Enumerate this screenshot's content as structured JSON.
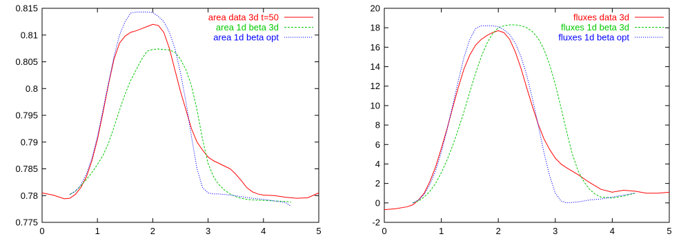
{
  "chart_data": [
    {
      "type": "line",
      "title": "",
      "xlabel": "",
      "ylabel": "",
      "xlim": [
        0,
        5
      ],
      "ylim": [
        0.775,
        0.815
      ],
      "xticks": [
        "0",
        "1",
        "2",
        "3",
        "4",
        "5"
      ],
      "yticks": [
        "0.775",
        "0.78",
        "0.785",
        "0.79",
        "0.795",
        "0.8",
        "0.805",
        "0.81",
        "0.815"
      ],
      "grid": false,
      "legend": "top-right",
      "series": [
        {
          "name": "area data 3d t=50",
          "color": "#ff0000",
          "style": "solid",
          "x": [
            0,
            0.2,
            0.4,
            0.5,
            0.6,
            0.7,
            0.8,
            0.9,
            1.0,
            1.1,
            1.2,
            1.3,
            1.4,
            1.5,
            1.6,
            1.7,
            1.8,
            1.9,
            2.0,
            2.1,
            2.2,
            2.3,
            2.4,
            2.5,
            2.6,
            2.7,
            2.8,
            2.9,
            3.0,
            3.1,
            3.2,
            3.3,
            3.4,
            3.5,
            3.6,
            3.7,
            3.8,
            3.9,
            4.0,
            4.2,
            4.4,
            4.6,
            4.8,
            5.0
          ],
          "y": [
            0.7805,
            0.7801,
            0.7794,
            0.7795,
            0.7802,
            0.7815,
            0.7835,
            0.7865,
            0.7905,
            0.7955,
            0.8008,
            0.8055,
            0.8085,
            0.8098,
            0.8105,
            0.8108,
            0.8112,
            0.8116,
            0.812,
            0.8118,
            0.8105,
            0.8075,
            0.8035,
            0.7995,
            0.796,
            0.7925,
            0.79,
            0.7885,
            0.7872,
            0.7865,
            0.786,
            0.7855,
            0.785,
            0.784,
            0.7828,
            0.7815,
            0.7807,
            0.7803,
            0.7801,
            0.78,
            0.7797,
            0.7795,
            0.7796,
            0.7805
          ]
        },
        {
          "name": "area 1d beta 3d",
          "color": "#00c800",
          "style": "dashed",
          "x": [
            0.5,
            0.6,
            0.7,
            0.8,
            0.9,
            1.0,
            1.1,
            1.2,
            1.3,
            1.4,
            1.5,
            1.6,
            1.7,
            1.8,
            1.9,
            2.0,
            2.1,
            2.2,
            2.3,
            2.4,
            2.5,
            2.6,
            2.7,
            2.8,
            2.9,
            3.0,
            3.1,
            3.2,
            3.3,
            3.4,
            3.5,
            3.6,
            3.7,
            3.8,
            4.0,
            4.2,
            4.4,
            4.5
          ],
          "y": [
            0.7802,
            0.7808,
            0.7818,
            0.783,
            0.7843,
            0.7858,
            0.7875,
            0.7898,
            0.7928,
            0.796,
            0.799,
            0.8015,
            0.8035,
            0.8055,
            0.807,
            0.8073,
            0.8074,
            0.8073,
            0.8072,
            0.8068,
            0.8055,
            0.8035,
            0.8005,
            0.796,
            0.7905,
            0.786,
            0.7835,
            0.782,
            0.781,
            0.7803,
            0.7798,
            0.7795,
            0.7793,
            0.7792,
            0.7791,
            0.779,
            0.7789,
            0.7788
          ]
        },
        {
          "name": "area 1d beta opt",
          "color": "#0000ff",
          "style": "dotted",
          "x": [
            0.5,
            0.6,
            0.7,
            0.8,
            0.9,
            1.0,
            1.1,
            1.2,
            1.3,
            1.4,
            1.5,
            1.6,
            1.7,
            1.8,
            1.9,
            2.0,
            2.1,
            2.2,
            2.3,
            2.4,
            2.5,
            2.6,
            2.7,
            2.8,
            2.9,
            3.0,
            3.1,
            3.2,
            3.4,
            3.6,
            3.8,
            4.0,
            4.2,
            4.4,
            4.5
          ],
          "y": [
            0.7802,
            0.7808,
            0.782,
            0.784,
            0.787,
            0.791,
            0.796,
            0.801,
            0.806,
            0.81,
            0.8125,
            0.8141,
            0.8143,
            0.8143,
            0.8143,
            0.8142,
            0.8135,
            0.8125,
            0.8105,
            0.8075,
            0.803,
            0.7975,
            0.791,
            0.785,
            0.7815,
            0.7805,
            0.7803,
            0.7803,
            0.7801,
            0.7798,
            0.7795,
            0.7793,
            0.779,
            0.7787,
            0.778
          ]
        }
      ]
    },
    {
      "type": "line",
      "title": "",
      "xlabel": "",
      "ylabel": "",
      "xlim": [
        0,
        5
      ],
      "ylim": [
        -2,
        20
      ],
      "xticks": [
        "0",
        "1",
        "2",
        "3",
        "4",
        "5"
      ],
      "yticks": [
        "-2",
        "0",
        "2",
        "4",
        "6",
        "8",
        "10",
        "12",
        "14",
        "16",
        "18",
        "20"
      ],
      "grid": false,
      "legend": "top-right",
      "series": [
        {
          "name": "fluxes data 3d",
          "color": "#ff0000",
          "style": "solid",
          "x": [
            0,
            0.2,
            0.4,
            0.5,
            0.6,
            0.7,
            0.8,
            0.9,
            1.0,
            1.1,
            1.2,
            1.3,
            1.4,
            1.5,
            1.6,
            1.7,
            1.8,
            1.9,
            2.0,
            2.1,
            2.2,
            2.3,
            2.4,
            2.5,
            2.6,
            2.7,
            2.8,
            2.9,
            3.0,
            3.1,
            3.2,
            3.4,
            3.6,
            3.8,
            4.0,
            4.2,
            4.4,
            4.6,
            4.8,
            5.0
          ],
          "y": [
            -0.7,
            -0.6,
            -0.4,
            -0.2,
            0.3,
            1.0,
            2.2,
            3.7,
            5.6,
            7.6,
            9.8,
            11.9,
            13.8,
            15.2,
            16.2,
            16.8,
            17.2,
            17.5,
            17.7,
            17.5,
            16.8,
            15.5,
            13.8,
            11.8,
            9.9,
            8.1,
            6.6,
            5.5,
            4.6,
            4.0,
            3.6,
            2.9,
            2.1,
            1.4,
            1.1,
            1.3,
            1.2,
            1.0,
            1.0,
            1.1
          ]
        },
        {
          "name": "fluxes 1d beta 3d",
          "color": "#00c800",
          "style": "dashed",
          "x": [
            0.5,
            0.6,
            0.7,
            0.8,
            0.9,
            1.0,
            1.1,
            1.2,
            1.3,
            1.4,
            1.5,
            1.6,
            1.7,
            1.8,
            1.9,
            2.0,
            2.1,
            2.2,
            2.3,
            2.4,
            2.5,
            2.6,
            2.7,
            2.8,
            2.9,
            3.0,
            3.1,
            3.2,
            3.3,
            3.4,
            3.5,
            3.6,
            3.7,
            3.8,
            4.0,
            4.2,
            4.4
          ],
          "y": [
            0.0,
            0.2,
            0.6,
            1.2,
            2.0,
            3.1,
            4.4,
            5.9,
            7.6,
            9.4,
            11.4,
            13.3,
            15.0,
            16.4,
            17.4,
            18.0,
            18.2,
            18.3,
            18.3,
            18.2,
            18.0,
            17.6,
            16.9,
            15.8,
            14.2,
            12.2,
            9.8,
            7.3,
            5.0,
            3.3,
            2.2,
            1.4,
            0.9,
            0.6,
            0.5,
            0.7,
            1.0
          ]
        },
        {
          "name": "fluxes 1d beta opt",
          "color": "#0000ff",
          "style": "dotted",
          "x": [
            0.5,
            0.6,
            0.7,
            0.8,
            0.9,
            1.0,
            1.1,
            1.2,
            1.3,
            1.4,
            1.5,
            1.6,
            1.7,
            1.8,
            1.9,
            2.0,
            2.1,
            2.2,
            2.3,
            2.4,
            2.5,
            2.6,
            2.7,
            2.8,
            2.9,
            3.0,
            3.1,
            3.2,
            3.4,
            3.6,
            3.8,
            4.0,
            4.2,
            4.4
          ],
          "y": [
            0.0,
            0.3,
            0.9,
            1.9,
            3.3,
            5.2,
            7.5,
            10.0,
            12.6,
            15.0,
            16.8,
            17.9,
            18.2,
            18.2,
            18.2,
            18.1,
            17.8,
            17.3,
            16.4,
            15.0,
            13.1,
            10.7,
            8.0,
            5.2,
            2.8,
            1.0,
            0.2,
            0.0,
            0.1,
            0.3,
            0.4,
            0.6,
            0.8,
            1.0
          ]
        }
      ]
    }
  ]
}
